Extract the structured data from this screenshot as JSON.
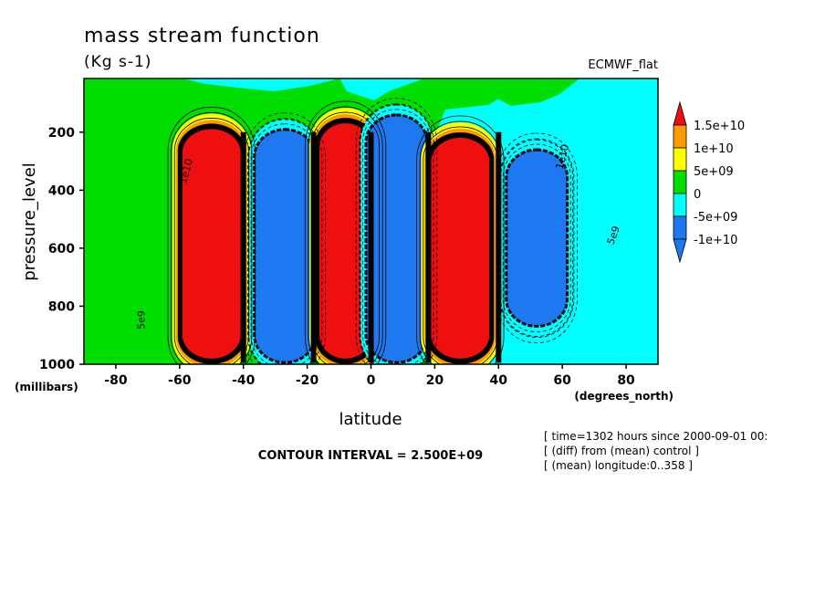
{
  "chart_data": {
    "type": "heatmap",
    "title": "mass stream function",
    "subtitle": "(Kg s-1)",
    "dataset_label": "ECMWF_flat",
    "xlabel": "latitude",
    "x_units": "(degrees_north)",
    "ylabel": "pressure_level",
    "y_units": "(millibars)",
    "xlim": [
      -90,
      90
    ],
    "ylim": [
      1000,
      15
    ],
    "y_inverted": true,
    "x_ticks": [
      "-80",
      "-60",
      "-40",
      "-20",
      "0",
      "20",
      "40",
      "60",
      "80"
    ],
    "x_tick_values": [
      -80,
      -60,
      -40,
      -20,
      0,
      20,
      40,
      60,
      80
    ],
    "y_ticks": [
      "200",
      "400",
      "600",
      "800",
      "1000"
    ],
    "y_tick_values": [
      200,
      400,
      600,
      800,
      1000
    ],
    "contour_interval_text": "CONTOUR INTERVAL = 2.500E+09",
    "legend": {
      "labels": [
        "1.5e+10",
        "1e+10",
        "5e+09",
        "0",
        "-5e+09",
        "-1e+10"
      ],
      "colors": [
        "#ee1010",
        "#ff9a00",
        "#ffff00",
        "#00dd00",
        "#00ffff",
        "#1e78f0",
        "#1e78f0"
      ],
      "top_color": "#ee1010",
      "bottom_color": "#1e78f0"
    },
    "background_color": "#00ffff",
    "cells": [
      {
        "lat_center": -50,
        "lat_halfwidth": 10,
        "p_top": 180,
        "p_bottom": 990,
        "sign": "positive"
      },
      {
        "lat_center": -27,
        "lat_halfwidth": 9,
        "p_top": 200,
        "p_bottom": 985,
        "sign": "negative"
      },
      {
        "lat_center": -8,
        "lat_halfwidth": 9,
        "p_top": 160,
        "p_bottom": 990,
        "sign": "positive"
      },
      {
        "lat_center": 8,
        "lat_halfwidth": 9,
        "p_top": 150,
        "p_bottom": 985,
        "sign": "negative"
      },
      {
        "lat_center": 28,
        "lat_halfwidth": 10,
        "p_top": 210,
        "p_bottom": 990,
        "sign": "positive"
      },
      {
        "lat_center": 52,
        "lat_halfwidth": 9,
        "p_top": 270,
        "p_bottom": 860,
        "sign": "negative"
      }
    ],
    "contour_labels": [
      "5e9",
      "5e9",
      "1e10",
      "1e10"
    ],
    "footer": [
      "[ time=1302 hours since 2000-09-01 00:",
      "[ (diff) from (mean) control ]",
      "[ (mean) longitude:0..358 ]"
    ]
  }
}
